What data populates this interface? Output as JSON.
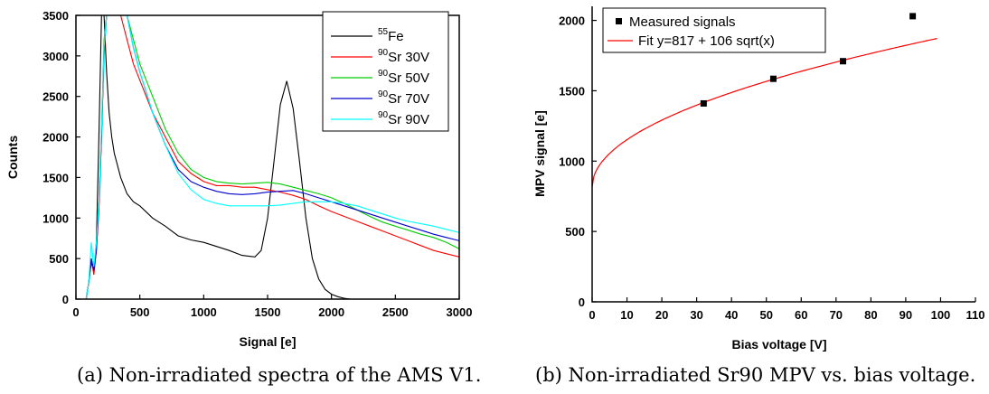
{
  "figure": {
    "caption_a": "(a) Non-irradiated spectra of the AMS V1.",
    "caption_b": "(b) Non-irradiated Sr90 MPV vs. bias voltage."
  },
  "chart_data": [
    {
      "type": "line",
      "xlabel": "Signal [e]",
      "ylabel": "Counts",
      "xlim": [
        0,
        3000
      ],
      "ylim": [
        0,
        3500
      ],
      "xticks": [
        0,
        500,
        1000,
        1500,
        2000,
        2500,
        3000
      ],
      "yticks": [
        0,
        500,
        1000,
        1500,
        2000,
        2500,
        3000,
        3500
      ],
      "grid": false,
      "legend_position": "top-right",
      "series": [
        {
          "name": "55Fe",
          "sup": "55",
          "label": "Fe",
          "color": "#000000",
          "x": [
            80,
            100,
            120,
            140,
            160,
            180,
            200,
            220,
            240,
            260,
            280,
            300,
            350,
            400,
            450,
            500,
            600,
            700,
            800,
            900,
            1000,
            1100,
            1200,
            1300,
            1400,
            1450,
            1500,
            1550,
            1600,
            1650,
            1700,
            1750,
            1800,
            1850,
            1900,
            1950,
            2000,
            2050,
            2100,
            2150
          ],
          "y": [
            0,
            200,
            450,
            350,
            700,
            2000,
            3500,
            3500,
            2800,
            2300,
            2000,
            1800,
            1500,
            1300,
            1200,
            1150,
            1000,
            900,
            780,
            730,
            700,
            650,
            600,
            540,
            520,
            600,
            1000,
            1700,
            2400,
            2690,
            2350,
            1700,
            1000,
            500,
            250,
            120,
            60,
            30,
            10,
            0
          ]
        },
        {
          "name": "90Sr 30V",
          "sup": "90",
          "label": "Sr 30V",
          "color": "#ff0000",
          "x": [
            80,
            100,
            120,
            140,
            160,
            180,
            200,
            220,
            240,
            260,
            280,
            300,
            350,
            400,
            450,
            500,
            600,
            700,
            800,
            900,
            1000,
            1100,
            1200,
            1300,
            1400,
            1500,
            1600,
            1700,
            1800,
            1900,
            2000,
            2100,
            2200,
            2300,
            2400,
            2500,
            2600,
            2700,
            2800,
            2900,
            3000
          ],
          "y": [
            0,
            200,
            500,
            300,
            600,
            1100,
            2000,
            3000,
            3500,
            3500,
            3500,
            3500,
            3500,
            3200,
            2900,
            2700,
            2300,
            2000,
            1700,
            1550,
            1450,
            1400,
            1400,
            1380,
            1380,
            1350,
            1320,
            1280,
            1230,
            1150,
            1080,
            1020,
            960,
            900,
            840,
            780,
            720,
            660,
            600,
            560,
            520
          ]
        },
        {
          "name": "90Sr 50V",
          "sup": "90",
          "label": "Sr 50V",
          "color": "#00cc00",
          "x": [
            80,
            100,
            120,
            140,
            160,
            180,
            200,
            220,
            240,
            260,
            280,
            300,
            350,
            400,
            450,
            500,
            600,
            700,
            800,
            900,
            1000,
            1100,
            1200,
            1300,
            1400,
            1500,
            1600,
            1700,
            1800,
            1900,
            2000,
            2100,
            2200,
            2300,
            2400,
            2500,
            2600,
            2700,
            2800,
            2900,
            3000
          ],
          "y": [
            0,
            200,
            500,
            350,
            650,
            1200,
            2100,
            3200,
            3500,
            3500,
            3500,
            3500,
            3500,
            3500,
            3200,
            2900,
            2500,
            2100,
            1800,
            1600,
            1500,
            1450,
            1430,
            1420,
            1430,
            1440,
            1420,
            1380,
            1340,
            1300,
            1250,
            1180,
            1100,
            1020,
            950,
            900,
            850,
            800,
            760,
            700,
            620
          ]
        },
        {
          "name": "90Sr 70V",
          "sup": "90",
          "label": "Sr 70V",
          "color": "#0000cc",
          "x": [
            80,
            100,
            120,
            140,
            160,
            180,
            200,
            220,
            240,
            260,
            280,
            300,
            350,
            400,
            450,
            500,
            600,
            700,
            800,
            900,
            1000,
            1100,
            1200,
            1300,
            1400,
            1500,
            1600,
            1700,
            1800,
            1900,
            2000,
            2100,
            2200,
            2300,
            2400,
            2500,
            2600,
            2700,
            2800,
            2900,
            3000
          ],
          "y": [
            0,
            200,
            500,
            350,
            600,
            1150,
            2000,
            3100,
            3500,
            3500,
            3500,
            3500,
            3500,
            3500,
            3100,
            2800,
            2300,
            1900,
            1600,
            1450,
            1380,
            1330,
            1300,
            1290,
            1300,
            1320,
            1330,
            1340,
            1300,
            1250,
            1200,
            1150,
            1100,
            1050,
            1000,
            950,
            900,
            850,
            800,
            760,
            720
          ]
        },
        {
          "name": "90Sr 90V",
          "sup": "90",
          "label": "Sr 90V",
          "color": "#00ffff",
          "x": [
            80,
            100,
            120,
            140,
            160,
            180,
            200,
            220,
            240,
            260,
            280,
            300,
            350,
            400,
            450,
            500,
            600,
            700,
            800,
            900,
            1000,
            1100,
            1200,
            1300,
            1400,
            1500,
            1600,
            1700,
            1800,
            1900,
            2000,
            2100,
            2200,
            2300,
            2400,
            2500,
            2600,
            2700,
            2800,
            2900,
            3000
          ],
          "y": [
            0,
            200,
            700,
            400,
            700,
            1200,
            2100,
            3100,
            3500,
            3500,
            3500,
            3500,
            3500,
            3500,
            3100,
            2800,
            2300,
            1900,
            1550,
            1350,
            1230,
            1180,
            1150,
            1150,
            1150,
            1150,
            1160,
            1180,
            1200,
            1200,
            1200,
            1180,
            1150,
            1100,
            1050,
            1000,
            960,
            930,
            900,
            860,
            820
          ]
        }
      ]
    },
    {
      "type": "scatter",
      "xlabel": "Bias voltage [V]",
      "ylabel": "MPV signal [e]",
      "xlim": [
        0,
        110
      ],
      "ylim": [
        0,
        2100
      ],
      "xticks": [
        0,
        10,
        20,
        30,
        40,
        50,
        60,
        70,
        80,
        90,
        100,
        110
      ],
      "yticks": [
        0,
        500,
        1000,
        1500,
        2000
      ],
      "grid": false,
      "legend_position": "top-left",
      "series": [
        {
          "name": "Measured signals",
          "marker": "square",
          "color": "#000000",
          "x": [
            32,
            52,
            72,
            92
          ],
          "y": [
            1410,
            1585,
            1710,
            2030
          ]
        },
        {
          "name": "Fit y=817 + 106 sqrt(x)",
          "line": true,
          "color": "#ff0000",
          "fit": {
            "a": 817,
            "b": 106,
            "x_range": [
              0,
              99
            ]
          }
        }
      ]
    }
  ]
}
